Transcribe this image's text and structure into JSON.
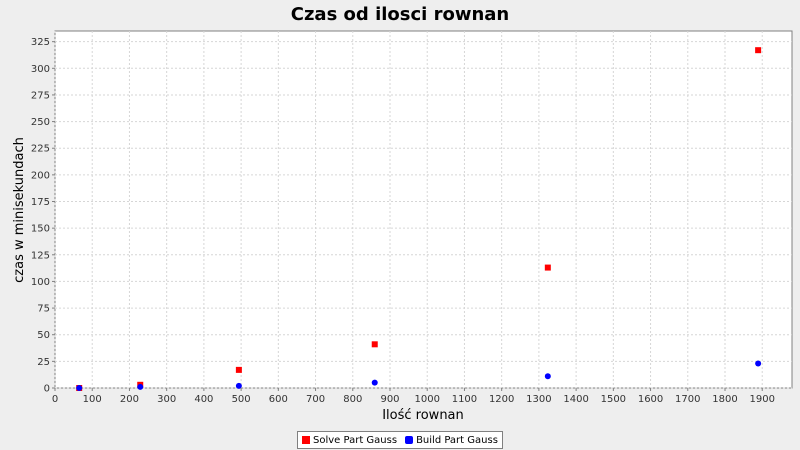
{
  "chart_data": {
    "type": "scatter",
    "title": "Czas od ilosci rownan",
    "xlabel": "Ilość rownan",
    "ylabel": "czas w minisekundach",
    "xlim": [
      0,
      1980
    ],
    "ylim": [
      0,
      335
    ],
    "xticks": [
      0,
      100,
      200,
      300,
      400,
      500,
      600,
      700,
      800,
      900,
      1000,
      1100,
      1200,
      1300,
      1400,
      1500,
      1600,
      1700,
      1800,
      1900
    ],
    "yticks": [
      0,
      25,
      50,
      75,
      100,
      125,
      150,
      175,
      200,
      225,
      250,
      275,
      300,
      325
    ],
    "grid": true,
    "legend_position": "bottom",
    "series": [
      {
        "name": "Solve Part Gauss",
        "color": "#ff0000",
        "marker": "square",
        "points": [
          [
            65,
            0
          ],
          [
            229,
            3
          ],
          [
            494,
            17
          ],
          [
            859,
            41
          ],
          [
            1324,
            113
          ],
          [
            1889,
            317
          ]
        ]
      },
      {
        "name": "Build Part Gauss",
        "color": "#0000ff",
        "marker": "circle",
        "points": [
          [
            65,
            0
          ],
          [
            229,
            1
          ],
          [
            494,
            2
          ],
          [
            859,
            5
          ],
          [
            1324,
            11
          ],
          [
            1889,
            23
          ]
        ]
      }
    ]
  }
}
